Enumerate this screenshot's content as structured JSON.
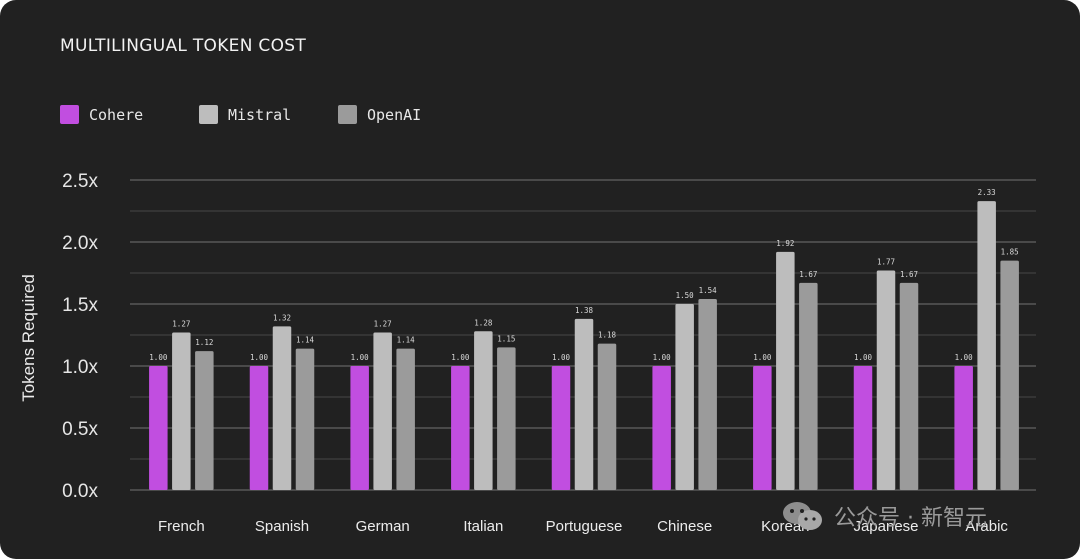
{
  "colors": {
    "background": "#212121",
    "Cohere": "#c14ee0",
    "Mistral": "#bdbdbd",
    "OpenAI": "#9b9b9b",
    "grid": "#6a6a6a"
  },
  "watermark": {
    "text": "公众号 · 新智元",
    "icon": "wechat-icon"
  },
  "chart_data": {
    "type": "bar",
    "title": "MULTILINGUAL TOKEN COST",
    "ylabel": "Tokens Required",
    "xlabel": "",
    "ylim": [
      0,
      2.5
    ],
    "yticks": [
      "0.0x",
      "0.5x",
      "1.0x",
      "1.5x",
      "2.0x",
      "2.5x"
    ],
    "ytick_values": [
      0,
      0.5,
      1.0,
      1.5,
      2.0,
      2.5
    ],
    "grid": true,
    "legend_position": "top-left",
    "categories": [
      "French",
      "Spanish",
      "German",
      "Italian",
      "Portuguese",
      "Chinese",
      "Korean",
      "Japanese",
      "Arabic"
    ],
    "series": [
      {
        "name": "Cohere",
        "values": [
          1.0,
          1.0,
          1.0,
          1.0,
          1.0,
          1.0,
          1.0,
          1.0,
          1.0
        ],
        "labels": [
          "1.00",
          "1.00",
          "1.00",
          "1.00",
          "1.00",
          "1.00",
          "1.00",
          "1.00",
          "1.00"
        ]
      },
      {
        "name": "Mistral",
        "values": [
          1.27,
          1.32,
          1.27,
          1.28,
          1.38,
          1.5,
          1.92,
          1.77,
          2.33
        ],
        "labels": [
          "1.27",
          "1.32",
          "1.27",
          "1.28",
          "1.38",
          "1.50",
          "1.92",
          "1.77",
          "2.33"
        ]
      },
      {
        "name": "OpenAI",
        "values": [
          1.12,
          1.14,
          1.14,
          1.15,
          1.18,
          1.54,
          1.67,
          1.67,
          1.85
        ],
        "labels": [
          "1.12",
          "1.14",
          "1.14",
          "1.15",
          "1.18",
          "1.54",
          "1.67",
          "1.67",
          "1.85"
        ]
      }
    ]
  }
}
